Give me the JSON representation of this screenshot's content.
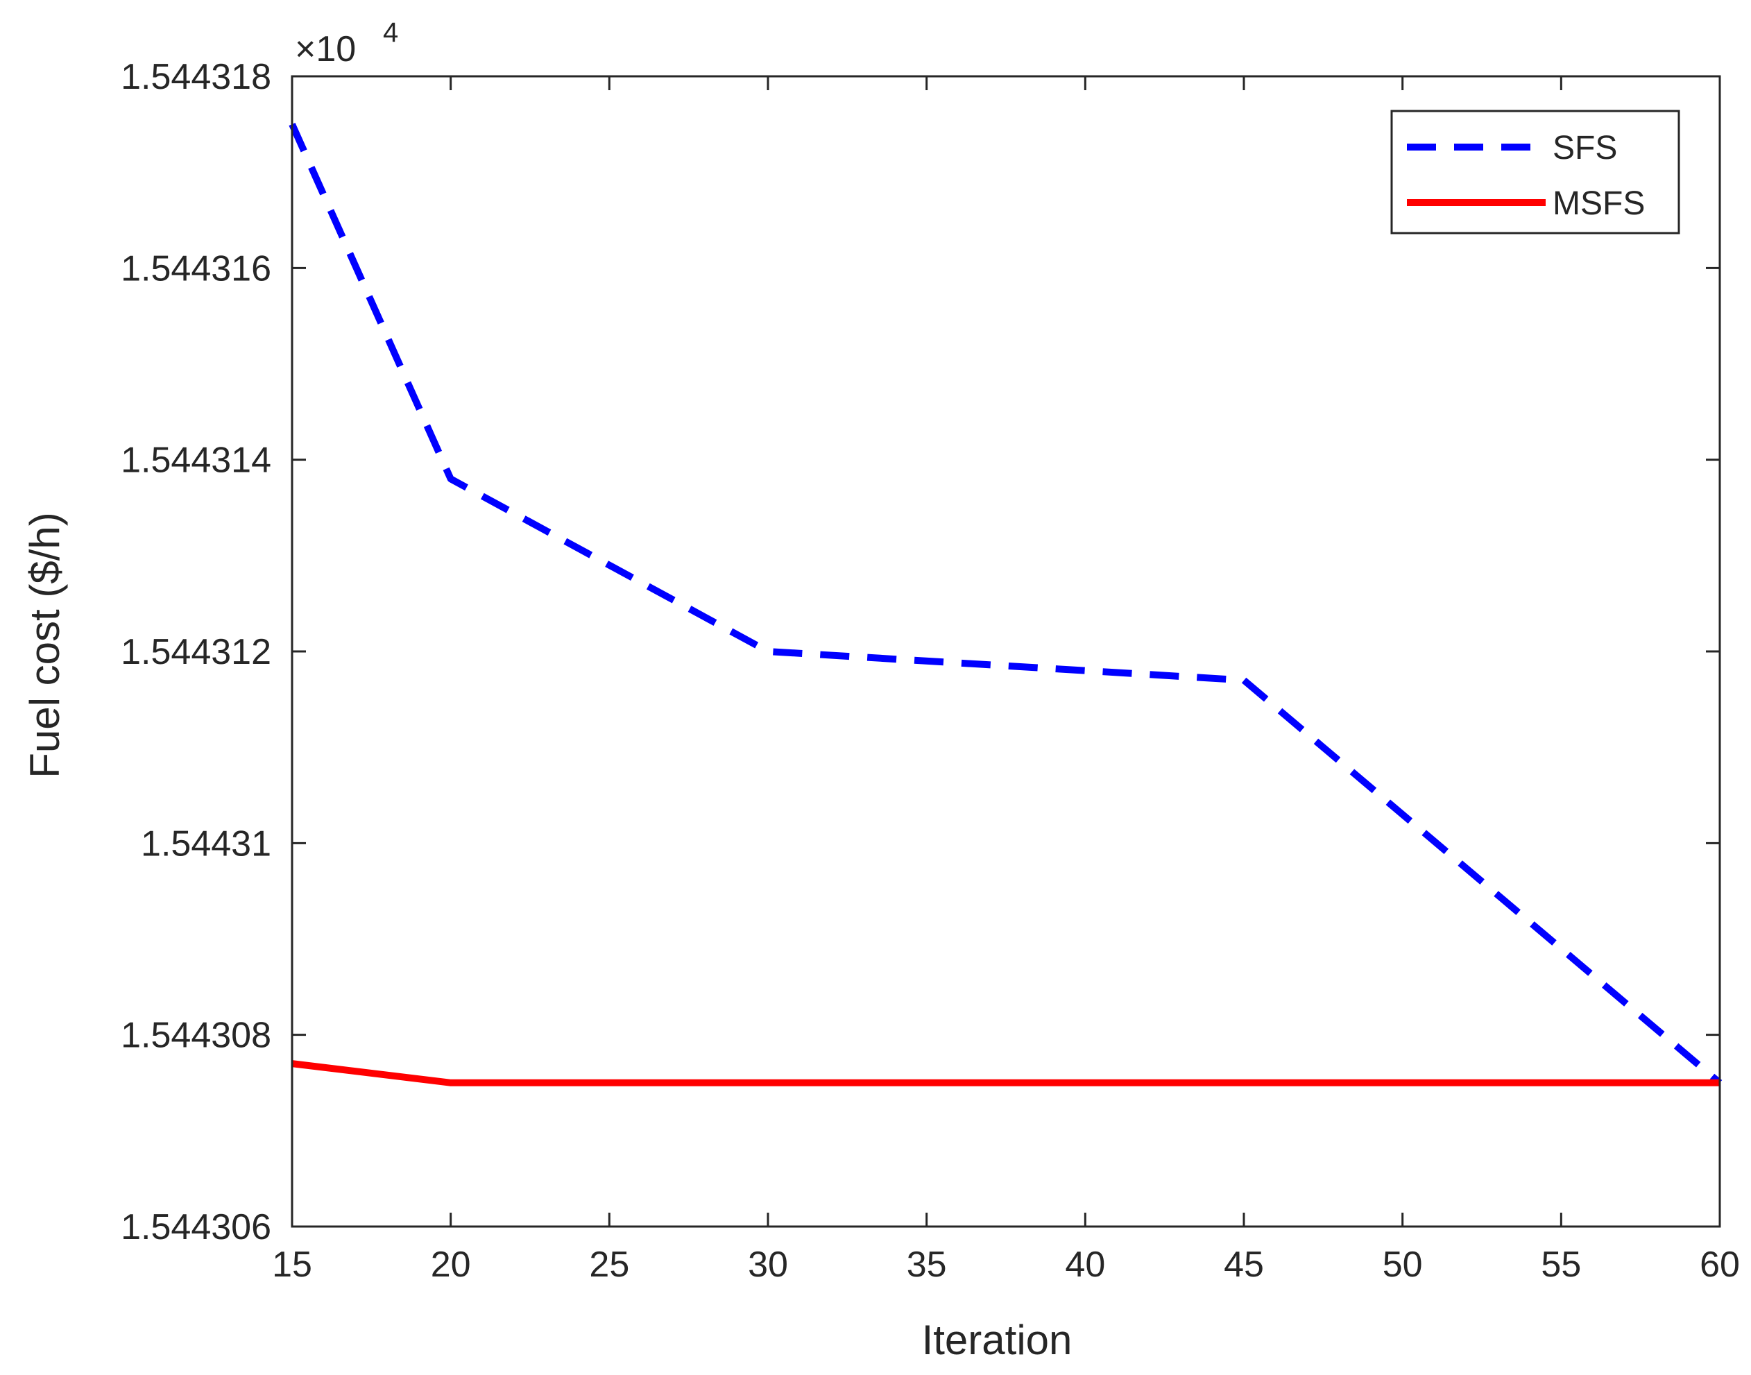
{
  "chart_data": {
    "type": "line",
    "xlabel": "Iteration",
    "ylabel": "Fuel cost ($/h)",
    "y_exponent_label": {
      "base": "×10",
      "power": "4"
    },
    "xlim": [
      15,
      60
    ],
    "ylim": [
      1.544306,
      1.544318
    ],
    "xticks": [
      15,
      20,
      25,
      30,
      35,
      40,
      45,
      50,
      55,
      60
    ],
    "yticks": [
      1.544306,
      1.544308,
      1.54431,
      1.544312,
      1.544314,
      1.544316,
      1.544318
    ],
    "ytick_labels": [
      "1.544306",
      "1.544308",
      "1.54431",
      "1.544312",
      "1.544314",
      "1.544316",
      "1.544318"
    ],
    "grid": false,
    "legend_position": "top-right",
    "series": [
      {
        "name": "SFS",
        "color": "#0000FF",
        "style": "dashed",
        "x": [
          15,
          20,
          30,
          45,
          60
        ],
        "y": [
          1.5443175,
          1.5443138,
          1.544312,
          1.5443117,
          1.5443075
        ]
      },
      {
        "name": "MSFS",
        "color": "#FF0000",
        "style": "solid",
        "x": [
          15,
          20,
          30,
          45,
          60
        ],
        "y": [
          1.5443077,
          1.5443075,
          1.5443075,
          1.5443075,
          1.5443075
        ]
      }
    ]
  }
}
